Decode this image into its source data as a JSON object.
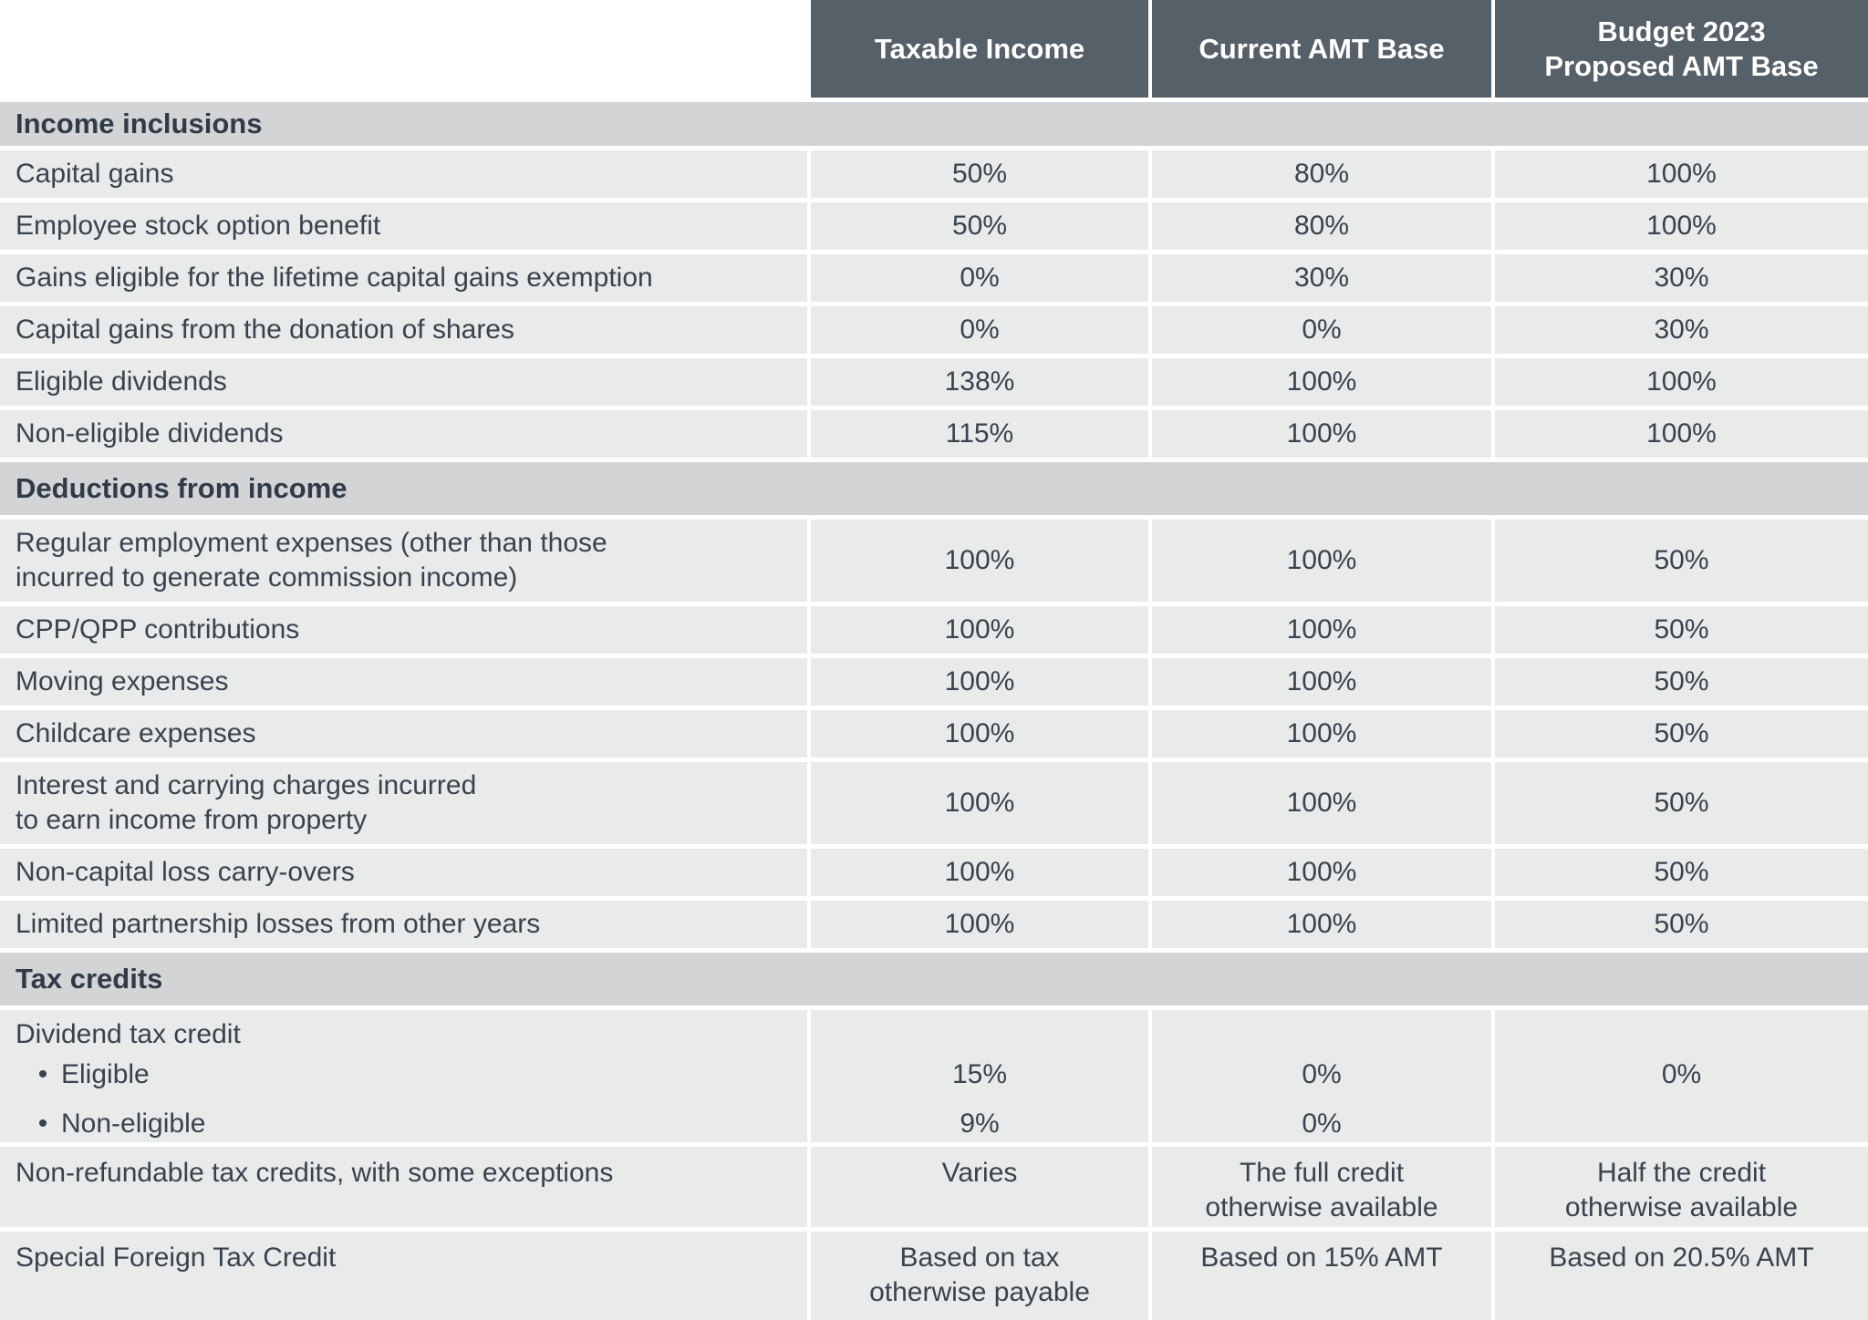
{
  "header": {
    "columns": [
      {
        "label": "Taxable Income"
      },
      {
        "label": "Current AMT Base"
      },
      {
        "label_line1": "Budget 2023",
        "label_line2": "Proposed AMT Base"
      }
    ]
  },
  "sections": [
    {
      "title": "Income inclusions",
      "rows": [
        {
          "label": "Capital gains",
          "values": [
            "50%",
            "80%",
            "100%"
          ]
        },
        {
          "label": "Employee stock option benefit",
          "values": [
            "50%",
            "80%",
            "100%"
          ]
        },
        {
          "label": "Gains eligible for the lifetime capital gains exemption",
          "values": [
            "0%",
            "30%",
            "30%"
          ]
        },
        {
          "label": "Capital gains from the donation of shares",
          "values": [
            "0%",
            "0%",
            "30%"
          ]
        },
        {
          "label": "Eligible dividends",
          "values": [
            "138%",
            "100%",
            "100%"
          ]
        },
        {
          "label": "Non-eligible dividends",
          "values": [
            "115%",
            "100%",
            "100%"
          ]
        }
      ]
    },
    {
      "title": "Deductions from income",
      "rows": [
        {
          "label": "Regular employment expenses (other than those",
          "label2": "incurred to generate commission income)",
          "values": [
            "100%",
            "100%",
            "50%"
          ]
        },
        {
          "label": "CPP/QPP contributions",
          "values": [
            "100%",
            "100%",
            "50%"
          ]
        },
        {
          "label": "Moving expenses",
          "values": [
            "100%",
            "100%",
            "50%"
          ]
        },
        {
          "label": "Childcare expenses",
          "values": [
            "100%",
            "100%",
            "50%"
          ]
        },
        {
          "label": "Interest and carrying charges incurred",
          "label2": "to earn income from property",
          "values": [
            "100%",
            "100%",
            "50%"
          ]
        },
        {
          "label": "Non-capital loss carry-overs",
          "values": [
            "100%",
            "100%",
            "50%"
          ]
        },
        {
          "label": "Limited partnership losses from other years",
          "values": [
            "100%",
            "100%",
            "50%"
          ]
        }
      ]
    },
    {
      "title": "Tax credits",
      "rows": [
        {
          "label": "Dividend tax credit",
          "bullets": [
            {
              "marker": "•",
              "label": "Eligible",
              "values": [
                "15%",
                "0%",
                "0%"
              ]
            },
            {
              "marker": "•",
              "label": "Non-eligible",
              "values": [
                "9%",
                "0%",
                ""
              ]
            }
          ]
        },
        {
          "label": "Non-refundable tax credits, with some exceptions",
          "values": [
            "Varies",
            "The full credit",
            "Half the credit"
          ],
          "values2": [
            "",
            "otherwise available",
            "otherwise available"
          ]
        },
        {
          "label": "Special Foreign Tax Credit",
          "values": [
            "Based on tax",
            "Based on 15% AMT",
            "Based on 20.5% AMT"
          ],
          "values2": [
            "otherwise payable",
            "",
            ""
          ]
        }
      ]
    }
  ],
  "colors": {
    "header_bg": "#566069",
    "header_text": "#FFFFFF",
    "section_band_bg": "#D2D4D5",
    "row_bg": "#E9EAEA",
    "text": "#3A434D",
    "background": "#FFFFFF"
  }
}
